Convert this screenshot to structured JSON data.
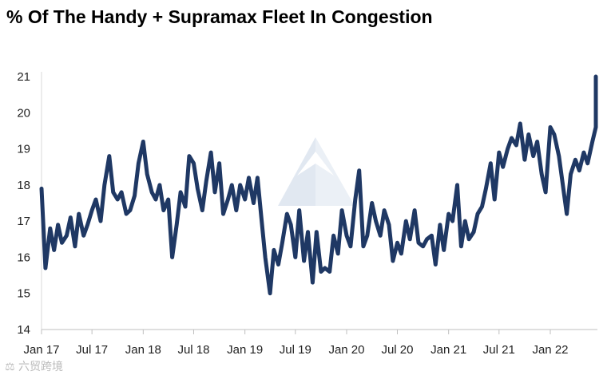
{
  "chart_data": {
    "type": "line",
    "title": "% Of The Handy + Supramax Fleet In Congestion",
    "xlabel": "",
    "ylabel": "",
    "ylim": [
      14,
      21
    ],
    "yticks": [
      14,
      15,
      16,
      17,
      18,
      19,
      20,
      21
    ],
    "xticks": [
      "Jan 17",
      "Jul 17",
      "Jan 18",
      "Jul 18",
      "Jan 19",
      "Jul 19",
      "Jan 20",
      "Jul 20",
      "Jan 21",
      "Jul 21",
      "Jan 22"
    ],
    "grid": false,
    "legend": "none",
    "line_color": "#1f3864",
    "series": [
      {
        "x": [
          "2017-01-01",
          "2017-01-15",
          "2017-02-01",
          "2017-02-15",
          "2017-03-01",
          "2017-03-15",
          "2017-04-01",
          "2017-04-15",
          "2017-05-01",
          "2017-05-15",
          "2017-06-01",
          "2017-06-15",
          "2017-07-01",
          "2017-07-15",
          "2017-08-01",
          "2017-08-15",
          "2017-09-01",
          "2017-09-15",
          "2017-10-01",
          "2017-10-15",
          "2017-11-01",
          "2017-11-15",
          "2017-12-01",
          "2017-12-15",
          "2018-01-01",
          "2018-01-15",
          "2018-02-01",
          "2018-02-15",
          "2018-03-01",
          "2018-03-15",
          "2018-04-01",
          "2018-04-15",
          "2018-05-01",
          "2018-05-15",
          "2018-06-01",
          "2018-06-15",
          "2018-07-01",
          "2018-07-15",
          "2018-08-01",
          "2018-08-15",
          "2018-09-01",
          "2018-09-15",
          "2018-10-01",
          "2018-10-15",
          "2018-11-01",
          "2018-11-15",
          "2018-12-01",
          "2018-12-15",
          "2019-01-01",
          "2019-01-15",
          "2019-02-01",
          "2019-02-15",
          "2019-03-01",
          "2019-03-15",
          "2019-04-01",
          "2019-04-15",
          "2019-05-01",
          "2019-05-15",
          "2019-06-01",
          "2019-06-15",
          "2019-07-01",
          "2019-07-15",
          "2019-08-01",
          "2019-08-15",
          "2019-09-01",
          "2019-09-15",
          "2019-10-01",
          "2019-10-15",
          "2019-11-01",
          "2019-11-15",
          "2019-12-01",
          "2019-12-15",
          "2020-01-01",
          "2020-01-15",
          "2020-02-01",
          "2020-02-15",
          "2020-03-01",
          "2020-03-15",
          "2020-04-01",
          "2020-04-15",
          "2020-05-01",
          "2020-05-15",
          "2020-06-01",
          "2020-06-15",
          "2020-07-01",
          "2020-07-15",
          "2020-08-01",
          "2020-08-15",
          "2020-09-01",
          "2020-09-15",
          "2020-10-01",
          "2020-10-15",
          "2020-11-01",
          "2020-11-15",
          "2020-12-01",
          "2020-12-15",
          "2021-01-01",
          "2021-01-15",
          "2021-02-01",
          "2021-02-15",
          "2021-03-01",
          "2021-03-15",
          "2021-04-01",
          "2021-04-15",
          "2021-05-01",
          "2021-05-15",
          "2021-06-01",
          "2021-06-15",
          "2021-07-01",
          "2021-07-15",
          "2021-08-01",
          "2021-08-15",
          "2021-09-01",
          "2021-09-15",
          "2021-10-01",
          "2021-10-15",
          "2021-11-01",
          "2021-11-15",
          "2021-12-01",
          "2021-12-15",
          "2022-01-01",
          "2022-01-15",
          "2022-02-01",
          "2022-02-15",
          "2022-03-01",
          "2022-03-15",
          "2022-04-01",
          "2022-04-15",
          "2022-05-01",
          "2022-05-15",
          "2022-06-01",
          "2022-06-15",
          "2022-07-01"
        ],
        "values": [
          17.9,
          15.7,
          16.8,
          16.2,
          16.9,
          16.4,
          16.6,
          17.1,
          16.3,
          17.2,
          16.6,
          16.9,
          17.3,
          17.6,
          17.0,
          18.0,
          18.8,
          17.8,
          17.6,
          17.8,
          17.2,
          17.3,
          17.7,
          18.6,
          19.2,
          18.3,
          17.8,
          17.6,
          18.0,
          17.3,
          17.6,
          16.0,
          16.9,
          17.8,
          17.4,
          18.8,
          18.6,
          17.9,
          17.3,
          18.1,
          18.9,
          17.8,
          18.6,
          17.2,
          17.6,
          18.0,
          17.3,
          18.0,
          17.6,
          18.2,
          17.5,
          18.2,
          17.1,
          16.0,
          15.0,
          16.2,
          15.8,
          16.4,
          17.2,
          16.9,
          16.0,
          17.3,
          15.9,
          16.7,
          15.3,
          16.7,
          15.6,
          15.7,
          15.6,
          16.6,
          16.1,
          17.3,
          16.6,
          16.3,
          17.6,
          18.4,
          16.3,
          16.6,
          17.5,
          17.0,
          16.6,
          17.3,
          16.9,
          15.9,
          16.4,
          16.1,
          17.0,
          16.5,
          17.3,
          16.4,
          16.3,
          16.5,
          16.6,
          15.8,
          16.9,
          16.2,
          17.2,
          17.0,
          18.0,
          16.3,
          17.0,
          16.5,
          16.7,
          17.2,
          17.4,
          17.9,
          18.6,
          17.6,
          18.9,
          18.5,
          19.0,
          19.3,
          19.1,
          19.7,
          18.7,
          19.4,
          18.8,
          19.2,
          18.3,
          17.8,
          19.6,
          19.4,
          18.8,
          18.0,
          17.2,
          18.3,
          18.7,
          18.4,
          18.9,
          18.6,
          19.2,
          19.6,
          21.0
        ]
      }
    ]
  },
  "watermark": "⚖︎ 六贸跨境"
}
